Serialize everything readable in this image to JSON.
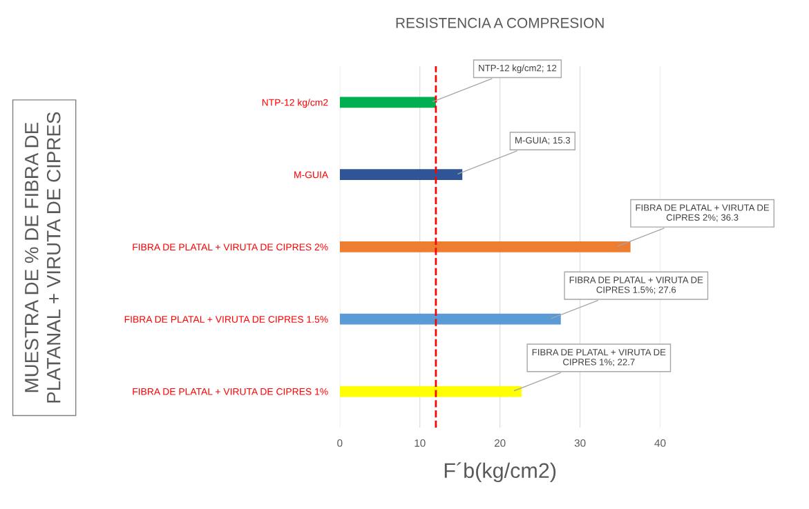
{
  "chart_data": {
    "type": "bar",
    "orientation": "horizontal",
    "title": "RESISTENCIA A COMPRESION",
    "xlabel": "F´b(kg/cm2)",
    "ylabel": "MUESTRA DE % DE FIBRA DE\nPLATANAL + VIRUTA DE CIPRES",
    "categories": [
      "NTP-12 kg/cm2",
      "M-GUIA",
      "FIBRA DE PLATAL + VIRUTA DE CIPRES 2%",
      "FIBRA DE PLATAL + VIRUTA DE CIPRES 1.5%",
      "FIBRA DE PLATAL + VIRUTA DE CIPRES 1%"
    ],
    "values": [
      12,
      15.3,
      36.3,
      27.6,
      22.7
    ],
    "colors": [
      "#00b050",
      "#2f5597",
      "#ed7d31",
      "#5b9bd5",
      "#ffff00"
    ],
    "value_labels": [
      "NTP-12 kg/cm2; 12",
      "M-GUIA; 15.3",
      "FIBRA DE PLATAL + VIRUTA DE\nCIPRES 2%; 36.3",
      "FIBRA DE PLATAL + VIRUTA DE\nCIPRES 1.5%; 27.6",
      "FIBRA DE PLATAL + VIRUTA DE\nCIPRES 1%; 22.7"
    ],
    "xlim": [
      0,
      40
    ],
    "xticks": [
      0,
      10,
      20,
      30,
      40
    ],
    "grid": "x",
    "ref_lines": [
      {
        "axis": "x",
        "value": 12,
        "color": "#ff0000",
        "line_style": "dashed"
      }
    ]
  }
}
